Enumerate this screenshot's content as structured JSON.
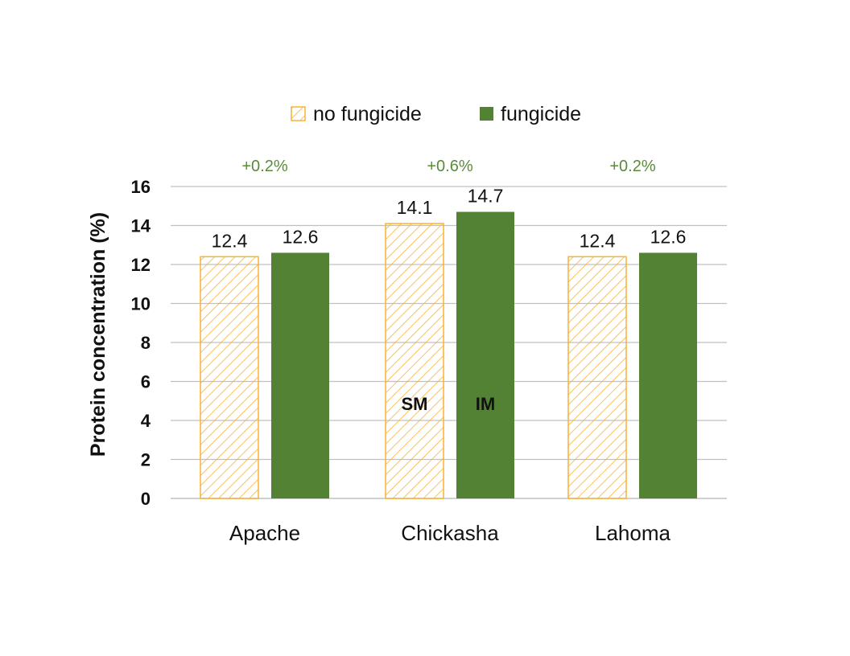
{
  "chart_data": {
    "type": "bar",
    "title": "",
    "xlabel": "",
    "ylabel": "Protein concentration (%)",
    "ylim": [
      0,
      16
    ],
    "yticks": [
      0,
      2,
      4,
      6,
      8,
      10,
      12,
      14,
      16
    ],
    "grid": true,
    "legend_position": "top",
    "categories": [
      "Apache",
      "Chickasha",
      "Lahoma"
    ],
    "series": [
      {
        "name": "no fungicide",
        "values": [
          12.4,
          14.1,
          12.4
        ],
        "color": "#f9b233",
        "pattern": "hatched"
      },
      {
        "name": "fungicide",
        "values": [
          12.6,
          14.7,
          12.6
        ],
        "color": "#548235",
        "pattern": "solid"
      }
    ],
    "value_labels": [
      [
        "12.4",
        "12.6"
      ],
      [
        "14.1",
        "14.7"
      ],
      [
        "12.4",
        "12.6"
      ]
    ],
    "annotations": {
      "differences": [
        "+0.2%",
        "+0.6%",
        "+0.2%"
      ],
      "in_bar_labels": [
        {
          "category": "Chickasha",
          "series": "no fungicide",
          "text": "SM"
        },
        {
          "category": "Chickasha",
          "series": "fungicide",
          "text": "IM"
        }
      ]
    }
  },
  "legend": {
    "items": [
      "no fungicide",
      "fungicide"
    ]
  },
  "colors": {
    "hatch": "#f9b233",
    "fungicide": "#548235",
    "diff_text": "#5a8a3a",
    "grid": "#c0c0c0"
  }
}
